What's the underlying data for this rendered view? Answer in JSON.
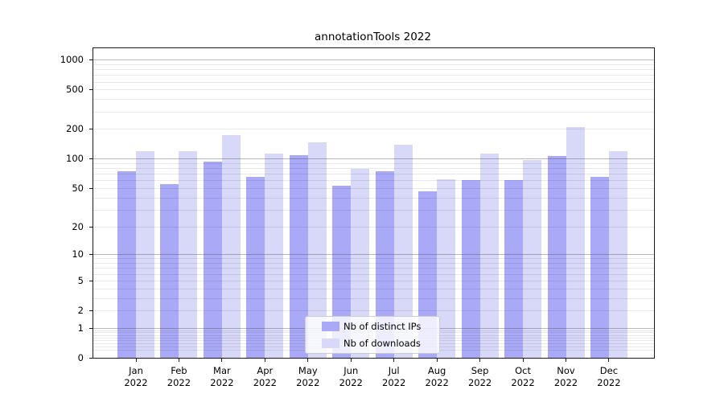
{
  "title": "annotationTools 2022",
  "chart_data": {
    "type": "bar",
    "title": "annotationTools 2022",
    "categories": [
      "Jan 2022",
      "Feb 2022",
      "Mar 2022",
      "Apr 2022",
      "May 2022",
      "Jun 2022",
      "Jul 2022",
      "Aug 2022",
      "Sep 2022",
      "Oct 2022",
      "Nov 2022",
      "Dec 2022"
    ],
    "series": [
      {
        "name": "Nb of distinct IPs",
        "color": "#a9a9f7",
        "values": [
          75,
          55,
          93,
          65,
          108,
          53,
          74,
          46,
          60,
          60,
          106,
          65
        ]
      },
      {
        "name": "Nb of downloads",
        "color": "#d8d8f8",
        "values": [
          118,
          118,
          173,
          113,
          146,
          79,
          138,
          61,
          112,
          97,
          209,
          119
        ]
      }
    ],
    "xlabel": "",
    "ylabel": "",
    "yscale": "symlog",
    "yticks": [
      0,
      1,
      2,
      5,
      10,
      20,
      50,
      100,
      200,
      500,
      1000
    ],
    "ylim": [
      0,
      1300
    ],
    "grid": true,
    "grid_major_color": "#b3b3b3",
    "grid_minor_color": "#e8e8e8",
    "legend_position": "lower center"
  }
}
